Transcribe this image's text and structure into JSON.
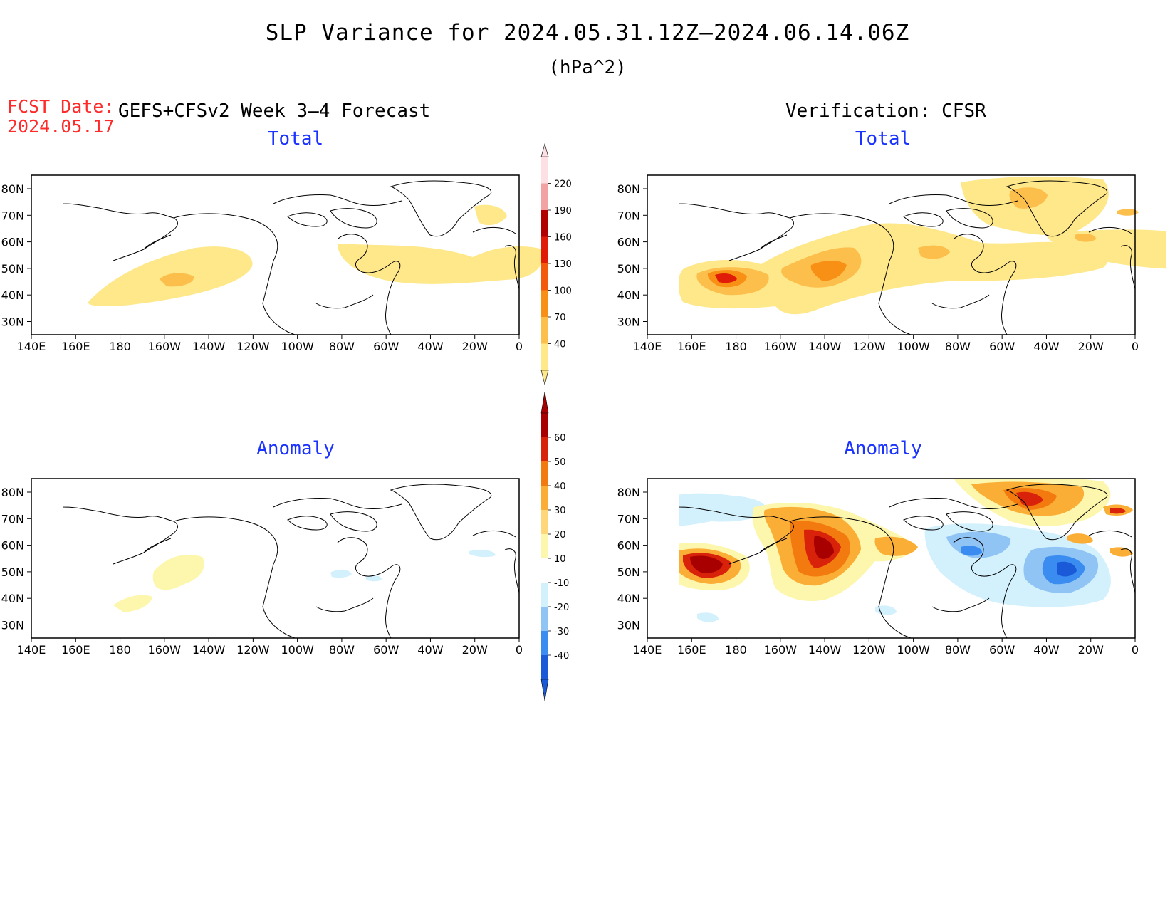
{
  "header": {
    "title": "SLP Variance for 2024.05.31.12Z–2024.06.14.06Z",
    "units": "(hPa^2)",
    "fcst_label": "FCST Date:",
    "fcst_date": "2024.05.17",
    "left_header": "GEFS+CFSv2 Week 3–4 Forecast",
    "right_header": "Verification: CFSR"
  },
  "panels": [
    {
      "id": "forecast-total",
      "title": "Total"
    },
    {
      "id": "verification-total",
      "title": "Total"
    },
    {
      "id": "forecast-anomaly",
      "title": "Anomaly"
    },
    {
      "id": "verification-anomaly",
      "title": "Anomaly"
    }
  ],
  "axes": {
    "lat_labels": [
      "80N",
      "70N",
      "60N",
      "50N",
      "40N",
      "30N"
    ],
    "lon_labels": [
      "140E",
      "160E",
      "180",
      "160W",
      "140W",
      "120W",
      "100W",
      "80W",
      "60W",
      "40W",
      "20W",
      "0"
    ]
  },
  "colorbars": {
    "total": {
      "labels": [
        "40",
        "70",
        "100",
        "130",
        "160",
        "190",
        "220"
      ],
      "colors": [
        "#fee88a",
        "#fdbf4c",
        "#f99016",
        "#f35a0c",
        "#e01b08",
        "#b00000",
        "#f3a2a3",
        "#fde0e4"
      ]
    },
    "anomaly": {
      "labels": [
        "-40",
        "-30",
        "-20",
        "-10",
        "10",
        "20",
        "30",
        "40",
        "50",
        "60"
      ],
      "colors": [
        "#1a5ad8",
        "#3a8cf0",
        "#8fc4f5",
        "#d3f0fd",
        "#ffffff",
        "#fdf7ad",
        "#fdd77a",
        "#fbae36",
        "#f37a0e",
        "#d8220a",
        "#a80000"
      ]
    }
  }
}
